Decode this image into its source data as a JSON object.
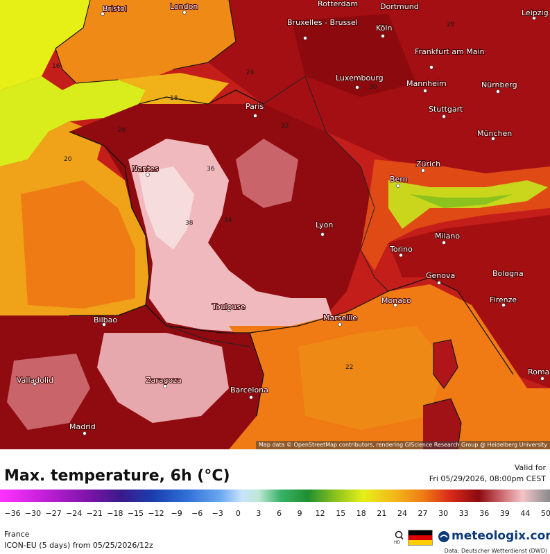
{
  "map": {
    "cities": [
      {
        "name": "Bristol",
        "label_id": "city-bristol"
      },
      {
        "name": "London",
        "label_id": "city-london"
      },
      {
        "name": "Rotterdam",
        "label_id": "city-rotterdam"
      },
      {
        "name": "Dortmund",
        "label_id": "city-dortmund"
      },
      {
        "name": "Leipzig",
        "label_id": "city-leipzig"
      },
      {
        "name": "Bruxelles - Brussel",
        "label_id": "city-bruxelles"
      },
      {
        "name": "Köln",
        "label_id": "city-koln"
      },
      {
        "name": "Frankfurt am Main",
        "label_id": "city-frankfurt"
      },
      {
        "name": "Luxembourg",
        "label_id": "city-luxembourg"
      },
      {
        "name": "Mannheim",
        "label_id": "city-mannheim"
      },
      {
        "name": "Nürnberg",
        "label_id": "city-nurnberg"
      },
      {
        "name": "Paris",
        "label_id": "city-paris"
      },
      {
        "name": "Stuttgart",
        "label_id": "city-stuttgart"
      },
      {
        "name": "München",
        "label_id": "city-munchen"
      },
      {
        "name": "Nantes",
        "label_id": "city-nantes"
      },
      {
        "name": "Zürich",
        "label_id": "city-zurich"
      },
      {
        "name": "Bern",
        "label_id": "city-bern"
      },
      {
        "name": "Lyon",
        "label_id": "city-lyon"
      },
      {
        "name": "Milano",
        "label_id": "city-milano"
      },
      {
        "name": "Torino",
        "label_id": "city-torino"
      },
      {
        "name": "Genova",
        "label_id": "city-genova"
      },
      {
        "name": "Bologna",
        "label_id": "city-bologna"
      },
      {
        "name": "Toulouse",
        "label_id": "city-toulouse"
      },
      {
        "name": "Monaco",
        "label_id": "city-monaco"
      },
      {
        "name": "Firenze",
        "label_id": "city-firenze"
      },
      {
        "name": "Bilbao",
        "label_id": "city-bilbao"
      },
      {
        "name": "Marseille",
        "label_id": "city-marseille"
      },
      {
        "name": "Valladolid",
        "label_id": "city-valladolid"
      },
      {
        "name": "Zaragoza",
        "label_id": "city-zaragoza"
      },
      {
        "name": "Barcelona",
        "label_id": "city-barcelona"
      },
      {
        "name": "Madrid",
        "label_id": "city-madrid"
      },
      {
        "name": "Roma",
        "label_id": "city-roma"
      }
    ],
    "isotherm_labels": [
      "16",
      "18",
      "20",
      "22",
      "24",
      "26",
      "28",
      "30",
      "32",
      "34",
      "36",
      "38"
    ],
    "attribution": "Map data © OpenStreetMap contributors, rendering GIScience Research Group @ Heidelberg University"
  },
  "header": {
    "title": "Max. temperature, 6h (°C)",
    "valid_label": "Valid for",
    "valid_date": "Fri 05/29/2026, 08:00pm CEST"
  },
  "scale": {
    "unit": "°C",
    "ticks": [
      "−36",
      "−30",
      "−27",
      "−24",
      "−21",
      "−18",
      "−15",
      "−12",
      "−9",
      "−6",
      "−3",
      "0",
      "3",
      "6",
      "9",
      "12",
      "15",
      "18",
      "21",
      "24",
      "27",
      "30",
      "33",
      "36",
      "39",
      "44",
      "50"
    ]
  },
  "footer": {
    "region": "France",
    "model": "ICON-EU (5 days) from 05/25/2026/12z",
    "brand": "meteologix.com",
    "data_credit": "Data: Deutscher Wetterdienst (DWD)"
  },
  "colors": {
    "hot_dark": "#8b0000",
    "hot": "#b0101a",
    "warm_red": "#e8401a",
    "orange": "#f07a12",
    "yellow": "#e9f21a",
    "pink": "#f3c4c8",
    "brand_blue": "#0c3a78"
  }
}
